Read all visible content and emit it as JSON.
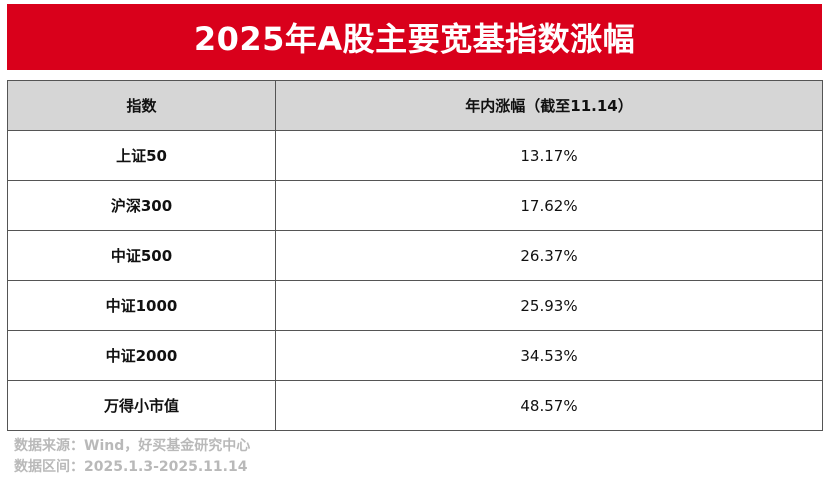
{
  "title": "2025年A股主要宽基指数涨幅",
  "table": {
    "headers": [
      "指数",
      "年内涨幅（截至11.14）"
    ],
    "rows": [
      {
        "name": "上证50",
        "value": "13.17%"
      },
      {
        "name": "沪深300",
        "value": "17.62%"
      },
      {
        "name": "中证500",
        "value": "26.37%"
      },
      {
        "name": "中证1000",
        "value": "25.93%"
      },
      {
        "name": "中证2000",
        "value": "34.53%"
      },
      {
        "name": "万得小市值",
        "value": "48.57%"
      }
    ]
  },
  "footer": {
    "source": "数据来源：Wind，好买基金研究中心",
    "range": "数据区间：2025.1.3-2025.11.14"
  },
  "colors": {
    "title_bg": "#d9001b",
    "header_bg": "#d6d6d6",
    "footer_text": "#b9b9b9"
  }
}
